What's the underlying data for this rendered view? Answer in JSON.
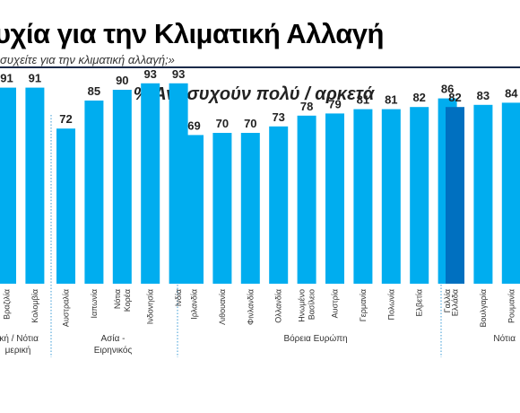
{
  "header": {
    "title": "υχία για την Κλιματική Αλλαγή",
    "subtitle": "συχείτε για την κλιματική αλλαγή;»"
  },
  "colors": {
    "bar": "#00adef",
    "highlight": "#0070c0",
    "divider": "#3a9bd6"
  },
  "chart_data": {
    "type": "bar",
    "title": "% Ανησυχούν πολύ / αρκετά",
    "categories": [
      "Βραζιλία",
      "Κολομβία",
      "Αυστραλία",
      "Ιαπωνία",
      "Νότια Κορέα",
      "Ινδονησία",
      "Ινδία",
      "Ιρλανδία",
      "Λιθουανία",
      "Φινλανδία",
      "Ολλανδία",
      "Ηνωμένο Βασίλειο",
      "Αυστρία",
      "Γερμανία",
      "Πολωνία",
      "Ελβετία",
      "Γαλλία",
      "Ελλάδα",
      "Βουλγαρία",
      "Ρουμανία"
    ],
    "values": [
      91,
      91,
      72,
      85,
      90,
      93,
      93,
      69,
      70,
      70,
      73,
      78,
      79,
      81,
      81,
      82,
      86,
      82,
      83,
      84
    ],
    "highlight": "Ελλάδα",
    "groups": [
      {
        "label": [
          "ική / Νότια",
          "μερική"
        ],
        "members": [
          "Βραζιλία",
          "Κολομβία"
        ]
      },
      {
        "label": [
          "Ασία -",
          "Ειρηνικός"
        ],
        "members": [
          "Αυστραλία",
          "Ιαπωνία",
          "Νότια Κορέα",
          "Ινδονησία",
          "Ινδία"
        ]
      },
      {
        "label": [
          "Βόρεια Ευρώπη"
        ],
        "members": [
          "Ιρλανδία",
          "Λιθουανία",
          "Φινλανδία",
          "Ολλανδία",
          "Ηνωμένο Βασίλειο",
          "Αυστρία",
          "Γερμανία",
          "Πολωνία",
          "Ελβετία",
          "Γαλλία"
        ]
      },
      {
        "label": [
          "Νότια"
        ],
        "members": [
          "Ελλάδα",
          "Βουλγαρία",
          "Ρουμανία"
        ]
      }
    ],
    "ylim": [
      0,
      100
    ],
    "grid": false,
    "legend": "none"
  }
}
